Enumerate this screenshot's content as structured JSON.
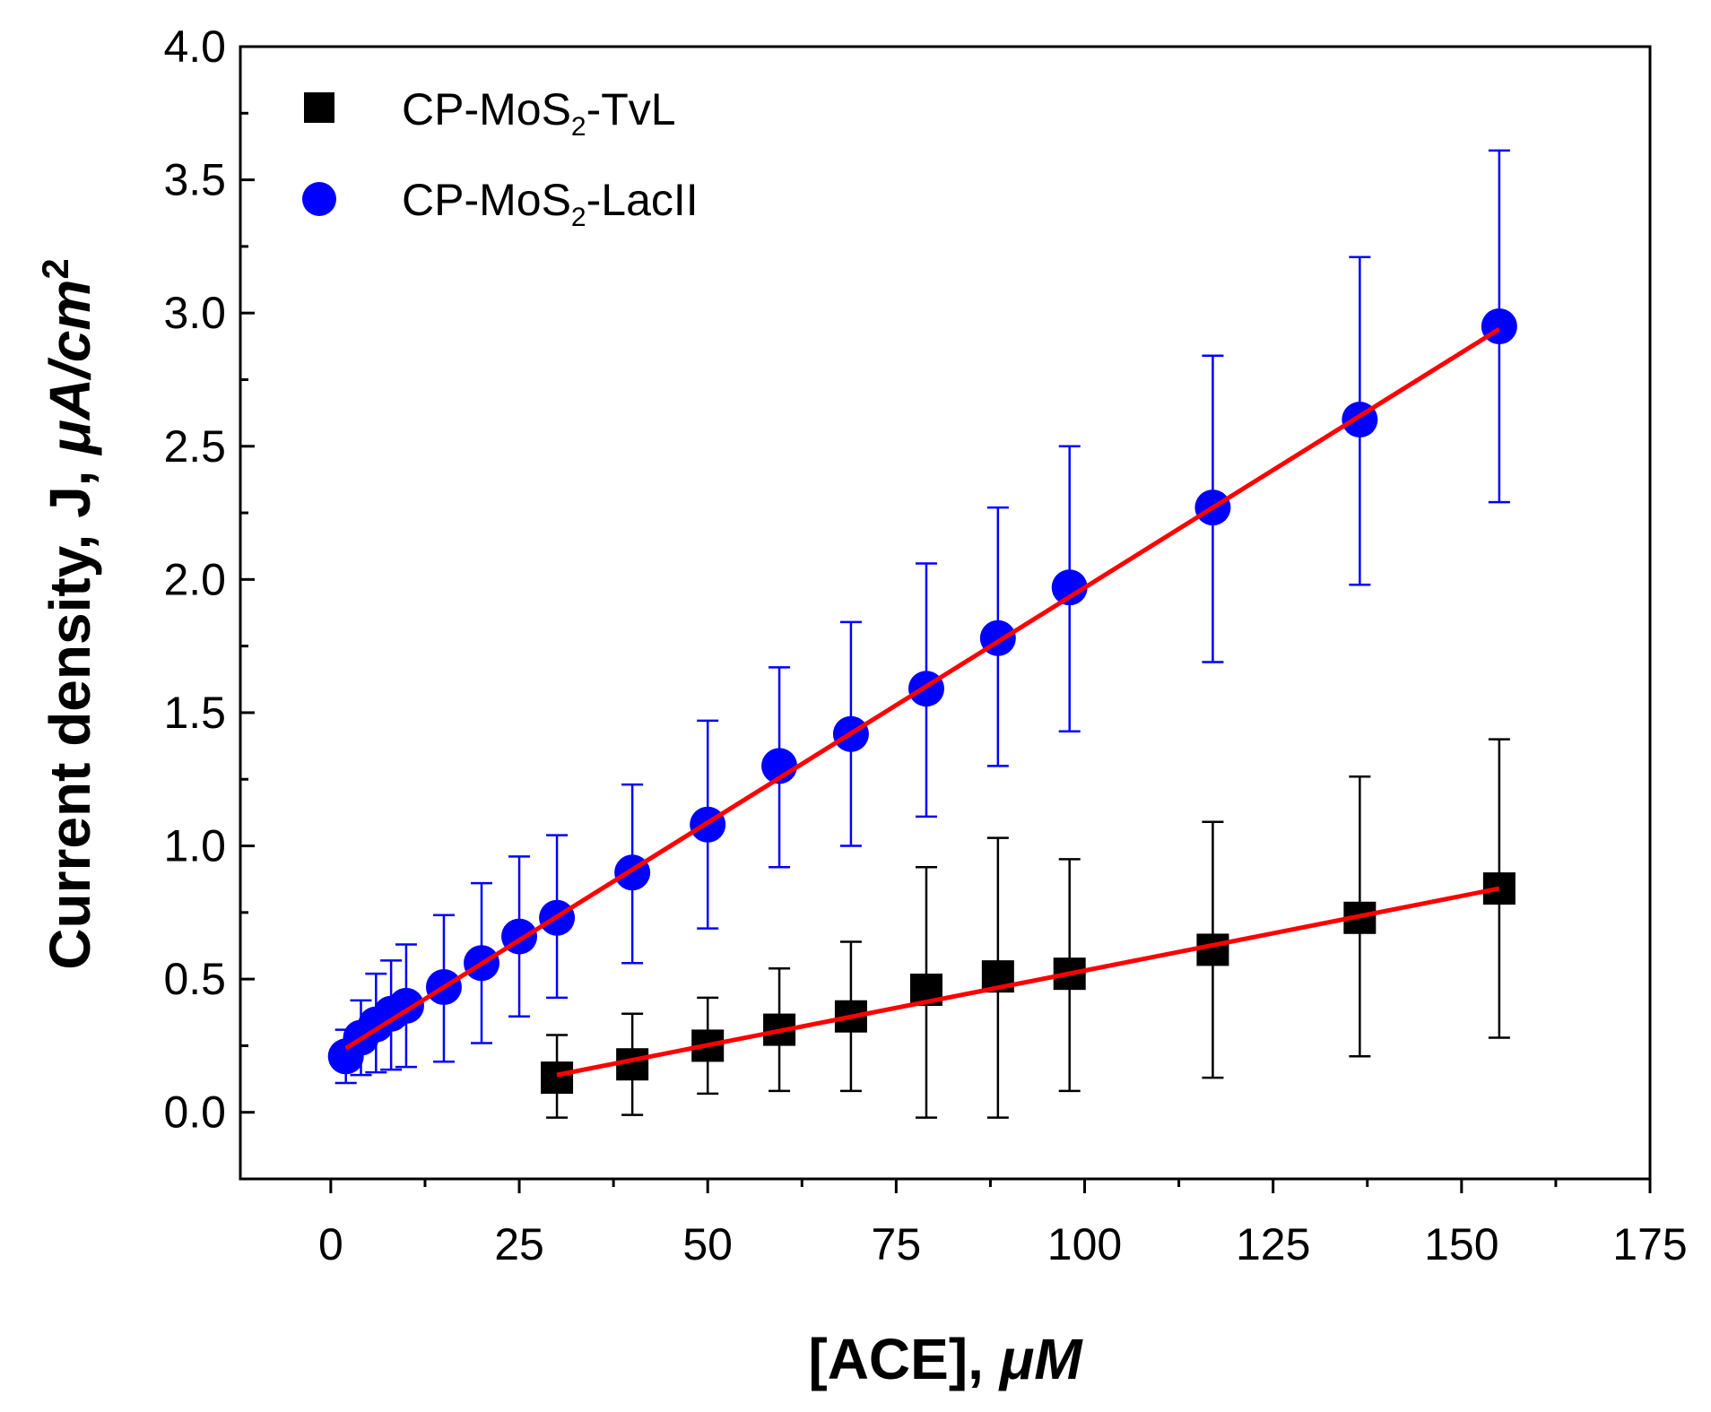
{
  "chart_data": {
    "type": "scatter",
    "xlabel": "[ACE], ",
    "xlabel_unit": "μM",
    "ylabel": "Current density, J, ",
    "ylabel_unit": "μA/cm",
    "ylabel_unit_sup": "2",
    "xlim": [
      -12,
      175
    ],
    "ylim": [
      -0.25,
      4.0
    ],
    "xticks": [
      0,
      25,
      50,
      75,
      100,
      125,
      150,
      175
    ],
    "yticks": [
      0.0,
      0.5,
      1.0,
      1.5,
      2.0,
      2.5,
      3.0,
      3.5,
      4.0
    ],
    "xtick_labels": [
      "0",
      "25",
      "50",
      "75",
      "100",
      "125",
      "150",
      "175"
    ],
    "ytick_labels": [
      "0.0",
      "0.5",
      "1.0",
      "1.5",
      "2.0",
      "2.5",
      "3.0",
      "3.5",
      "4.0"
    ],
    "legend_position": "top-left",
    "series": [
      {
        "name_prefix": "CP-MoS",
        "name_sub": "2",
        "name_suffix": "-TvL",
        "marker": "square",
        "color": "#000000",
        "x": [
          30,
          40,
          50,
          59.5,
          69,
          79,
          88.5,
          98,
          117,
          136.5,
          155
        ],
        "y": [
          0.13,
          0.18,
          0.25,
          0.31,
          0.36,
          0.46,
          0.51,
          0.52,
          0.61,
          0.73,
          0.84
        ],
        "err_low": [
          -0.02,
          -0.01,
          0.07,
          0.08,
          0.08,
          -0.02,
          -0.02,
          0.08,
          0.13,
          0.21,
          0.28
        ],
        "err_high": [
          0.29,
          0.37,
          0.43,
          0.54,
          0.64,
          0.92,
          1.03,
          0.95,
          1.09,
          1.26,
          1.4
        ],
        "fit": {
          "x": [
            30,
            155
          ],
          "y": [
            0.14,
            0.84
          ],
          "color": "#ff0000"
        }
      },
      {
        "name_prefix": "CP-MoS",
        "name_sub": "2",
        "name_suffix": "-LacII",
        "marker": "circle",
        "color": "#0000ff",
        "x": [
          2,
          4,
          6,
          8,
          10,
          15,
          20,
          25,
          30,
          40,
          50,
          59.5,
          69,
          79,
          88.5,
          98,
          117,
          136.5,
          155
        ],
        "y": [
          0.21,
          0.28,
          0.33,
          0.37,
          0.4,
          0.47,
          0.56,
          0.66,
          0.73,
          0.9,
          1.08,
          1.3,
          1.42,
          1.59,
          1.78,
          1.97,
          2.27,
          2.6,
          2.95
        ],
        "err_low": [
          0.11,
          0.14,
          0.15,
          0.16,
          0.17,
          0.19,
          0.26,
          0.36,
          0.43,
          0.56,
          0.69,
          0.92,
          1.0,
          1.11,
          1.3,
          1.43,
          1.69,
          1.98,
          2.29
        ],
        "err_high": [
          0.31,
          0.42,
          0.52,
          0.57,
          0.63,
          0.74,
          0.86,
          0.96,
          1.04,
          1.23,
          1.47,
          1.67,
          1.84,
          2.06,
          2.27,
          2.5,
          2.84,
          3.21,
          3.61
        ],
        "fit": {
          "x": [
            2,
            155
          ],
          "y": [
            0.24,
            2.94
          ],
          "color": "#ff0000"
        }
      }
    ]
  }
}
